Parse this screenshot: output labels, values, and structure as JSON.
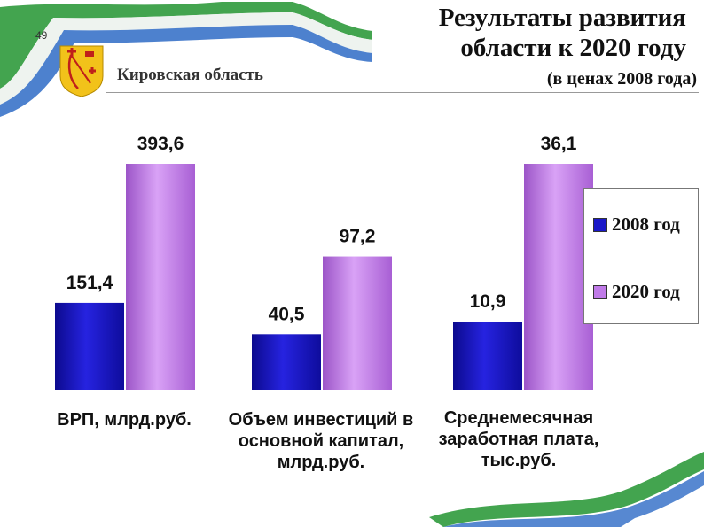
{
  "header": {
    "slide_number": "49",
    "region": "Кировская область",
    "title_line1": "Результаты развития",
    "title_line2": "области к 2020 году",
    "subtitle": "(в ценах 2008 года)"
  },
  "colors": {
    "series_2008": "#1a18c8",
    "series_2020": "#c07ae8",
    "ribbon_green": "#2f9a3c",
    "ribbon_blue": "#3a73c9"
  },
  "chart_data": {
    "type": "bar",
    "title": "Результаты развития области к 2020 году",
    "subtitle": "(в ценах 2008 года)",
    "grid": false,
    "legend_position": "right",
    "series": [
      {
        "name": "2008 год",
        "color": "#1a18c8"
      },
      {
        "name": "2020 год",
        "color": "#c07ae8"
      }
    ],
    "groups": [
      {
        "label": [
          "ВРП, млрд.руб."
        ],
        "values": [
          151.4,
          393.6
        ],
        "data_labels": [
          "151,4",
          "393,6"
        ]
      },
      {
        "label": [
          "Объем инвестиций в",
          "основной капитал,",
          "млрд.руб."
        ],
        "values": [
          40.5,
          97.2
        ],
        "data_labels": [
          "40,5",
          "97,2"
        ]
      },
      {
        "label": [
          "Среднемесячная",
          "заработная плата,",
          "тыс.руб."
        ],
        "values": [
          10.9,
          36.1
        ],
        "data_labels": [
          "10,9",
          "36,1"
        ]
      }
    ]
  }
}
